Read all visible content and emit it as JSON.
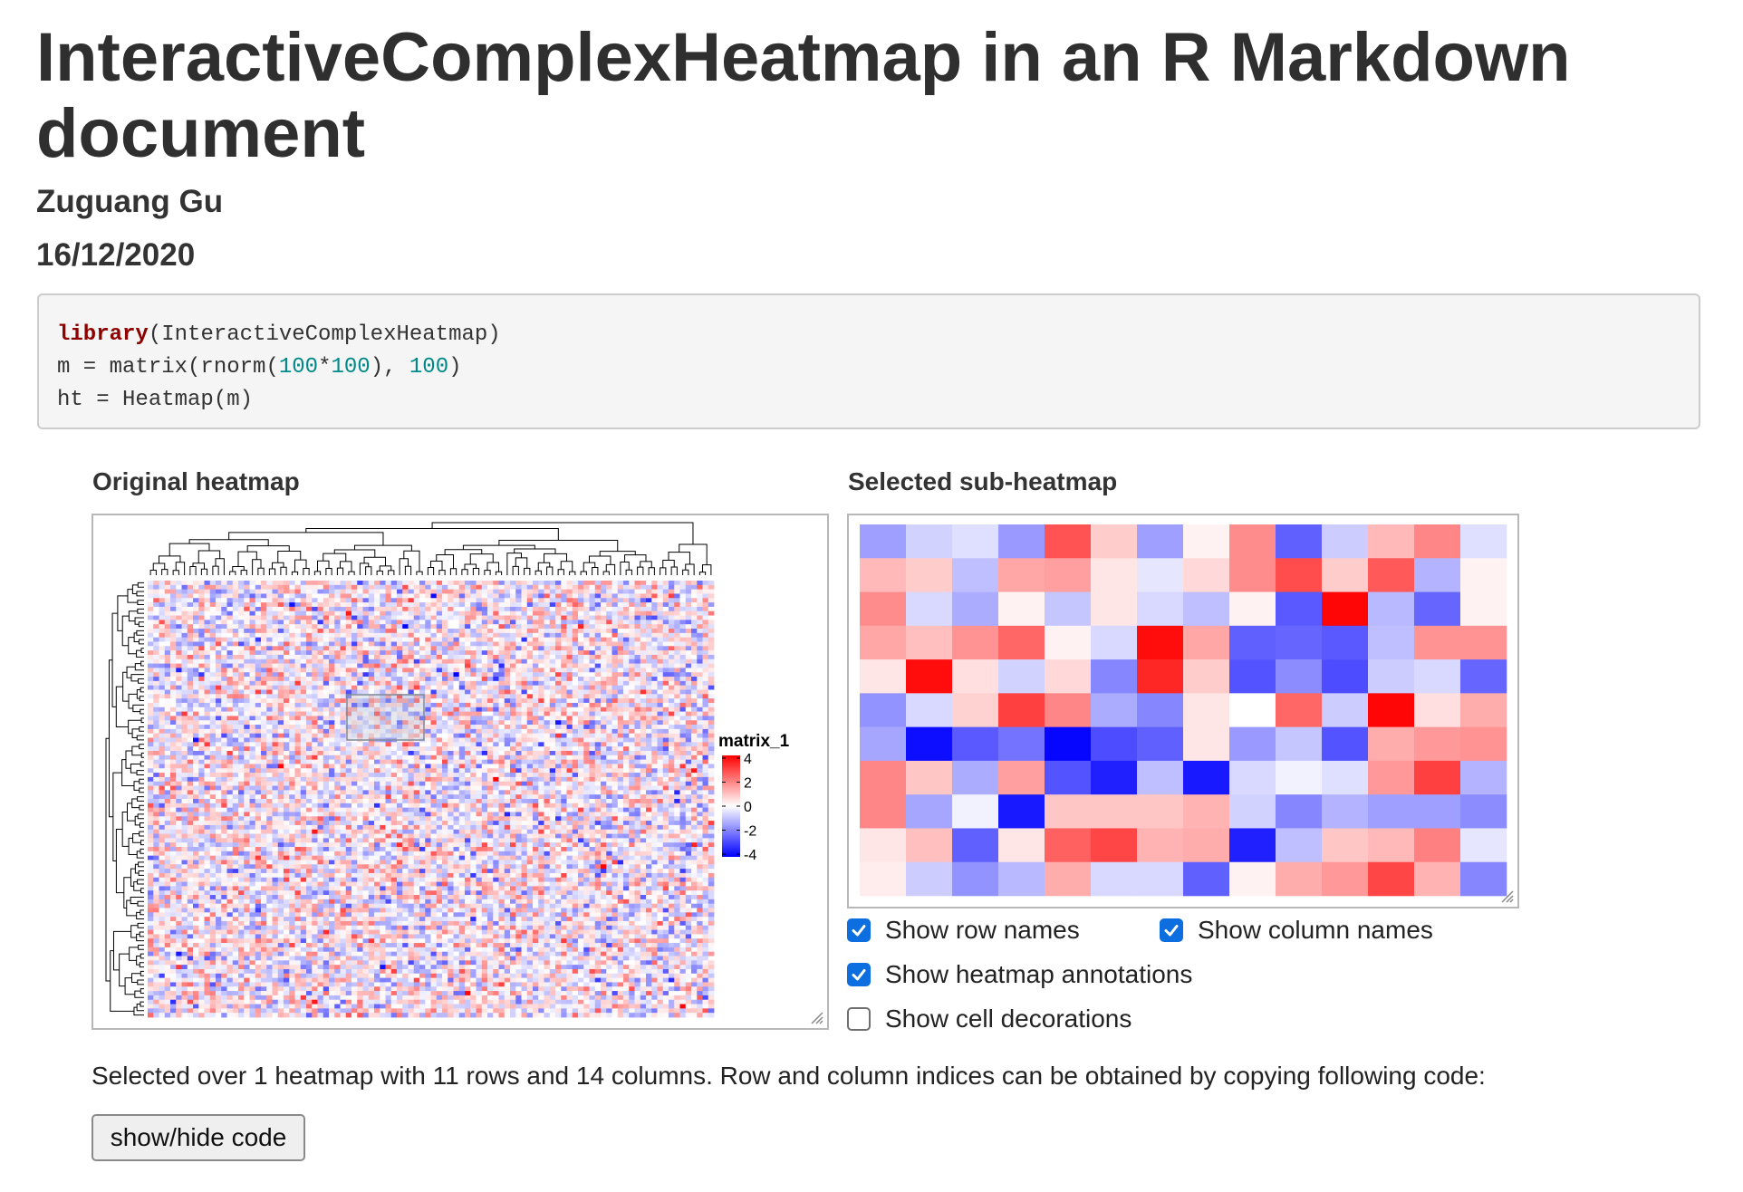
{
  "document": {
    "title": "InteractiveComplexHeatmap in an R Markdown document",
    "author": "Zuguang Gu",
    "date": "16/12/2020"
  },
  "code": [
    [
      {
        "t": "library",
        "k": "kw"
      },
      {
        "t": "(InteractiveComplexHeatmap)"
      }
    ],
    [
      {
        "t": "m = matrix(rnorm("
      },
      {
        "t": "100",
        "k": "num"
      },
      {
        "t": "*"
      },
      {
        "t": "100",
        "k": "num"
      },
      {
        "t": "), "
      },
      {
        "t": "100",
        "k": "num"
      },
      {
        "t": ")"
      }
    ],
    [
      {
        "t": "ht = Heatmap(m)"
      }
    ]
  ],
  "panels": {
    "original_title": "Original heatmap",
    "sub_title": "Selected sub-heatmap"
  },
  "legend": {
    "title": "matrix_1",
    "ticks": [
      "4",
      "2",
      "0",
      "-2",
      "-4"
    ]
  },
  "colors": {
    "low": "#0000ff",
    "mid": "#ffffff",
    "high": "#ff0000",
    "checkbox": "#0d6ee0"
  },
  "options": {
    "row_names": {
      "label": "Show row names",
      "checked": true
    },
    "column_names": {
      "label": "Show column names",
      "checked": true
    },
    "annotations": {
      "label": "Show heatmap annotations",
      "checked": true
    },
    "decorations": {
      "label": "Show cell decorations",
      "checked": false
    }
  },
  "status_text": "Selected over 1 heatmap with 11 rows and 14 columns. Row and column indices can be obtained by copying following code:",
  "button_label": "show/hide code",
  "sub_heatmap": {
    "values": [
      [
        -1.5,
        -0.7,
        -0.5,
        -1.6,
        2.7,
        0.8,
        -1.5,
        0.2,
        1.8,
        -2.5,
        -0.8,
        1.1,
        1.9,
        -0.5
      ],
      [
        1.1,
        0.8,
        -1.0,
        1.4,
        1.5,
        0.4,
        -0.4,
        0.6,
        1.8,
        2.8,
        0.8,
        2.6,
        -1.2,
        0.2
      ],
      [
        1.8,
        -0.6,
        -1.3,
        0.2,
        -0.9,
        0.4,
        -0.6,
        -1.0,
        0.2,
        -2.6,
        3.9,
        -1.1,
        -2.4,
        0.2
      ],
      [
        1.4,
        1.0,
        1.7,
        2.4,
        0.2,
        -0.6,
        3.8,
        1.4,
        -2.5,
        -2.4,
        -2.6,
        -1.0,
        1.7,
        1.7
      ],
      [
        0.4,
        3.8,
        0.5,
        -0.7,
        0.6,
        -1.9,
        3.4,
        0.8,
        -2.7,
        -1.8,
        -2.8,
        -0.8,
        -0.6,
        -2.4
      ],
      [
        -1.7,
        -0.6,
        0.7,
        3.0,
        1.9,
        -1.3,
        -1.9,
        0.4,
        0.0,
        2.4,
        -0.8,
        3.9,
        0.5,
        1.3
      ],
      [
        -1.4,
        -3.8,
        -2.6,
        -2.2,
        -3.9,
        -2.8,
        -2.5,
        0.4,
        -1.6,
        -0.9,
        -2.7,
        1.3,
        1.6,
        1.7
      ],
      [
        1.9,
        0.9,
        -1.3,
        1.5,
        -2.7,
        -3.5,
        -1.0,
        -3.6,
        -0.6,
        -0.2,
        -0.5,
        1.6,
        3.0,
        -1.2
      ],
      [
        1.9,
        -1.4,
        -0.2,
        -3.6,
        0.9,
        0.9,
        0.9,
        1.2,
        -0.7,
        -1.9,
        -1.2,
        -1.5,
        -1.5,
        -1.8
      ],
      [
        0.4,
        1.0,
        -2.5,
        0.4,
        2.5,
        2.9,
        1.2,
        1.3,
        -3.5,
        -1.0,
        0.9,
        1.1,
        2.0,
        -0.4
      ],
      [
        0.3,
        -0.8,
        -1.7,
        -1.1,
        1.3,
        -0.6,
        -0.6,
        -2.5,
        0.2,
        1.3,
        1.6,
        2.9,
        1.2,
        -1.9
      ]
    ]
  }
}
